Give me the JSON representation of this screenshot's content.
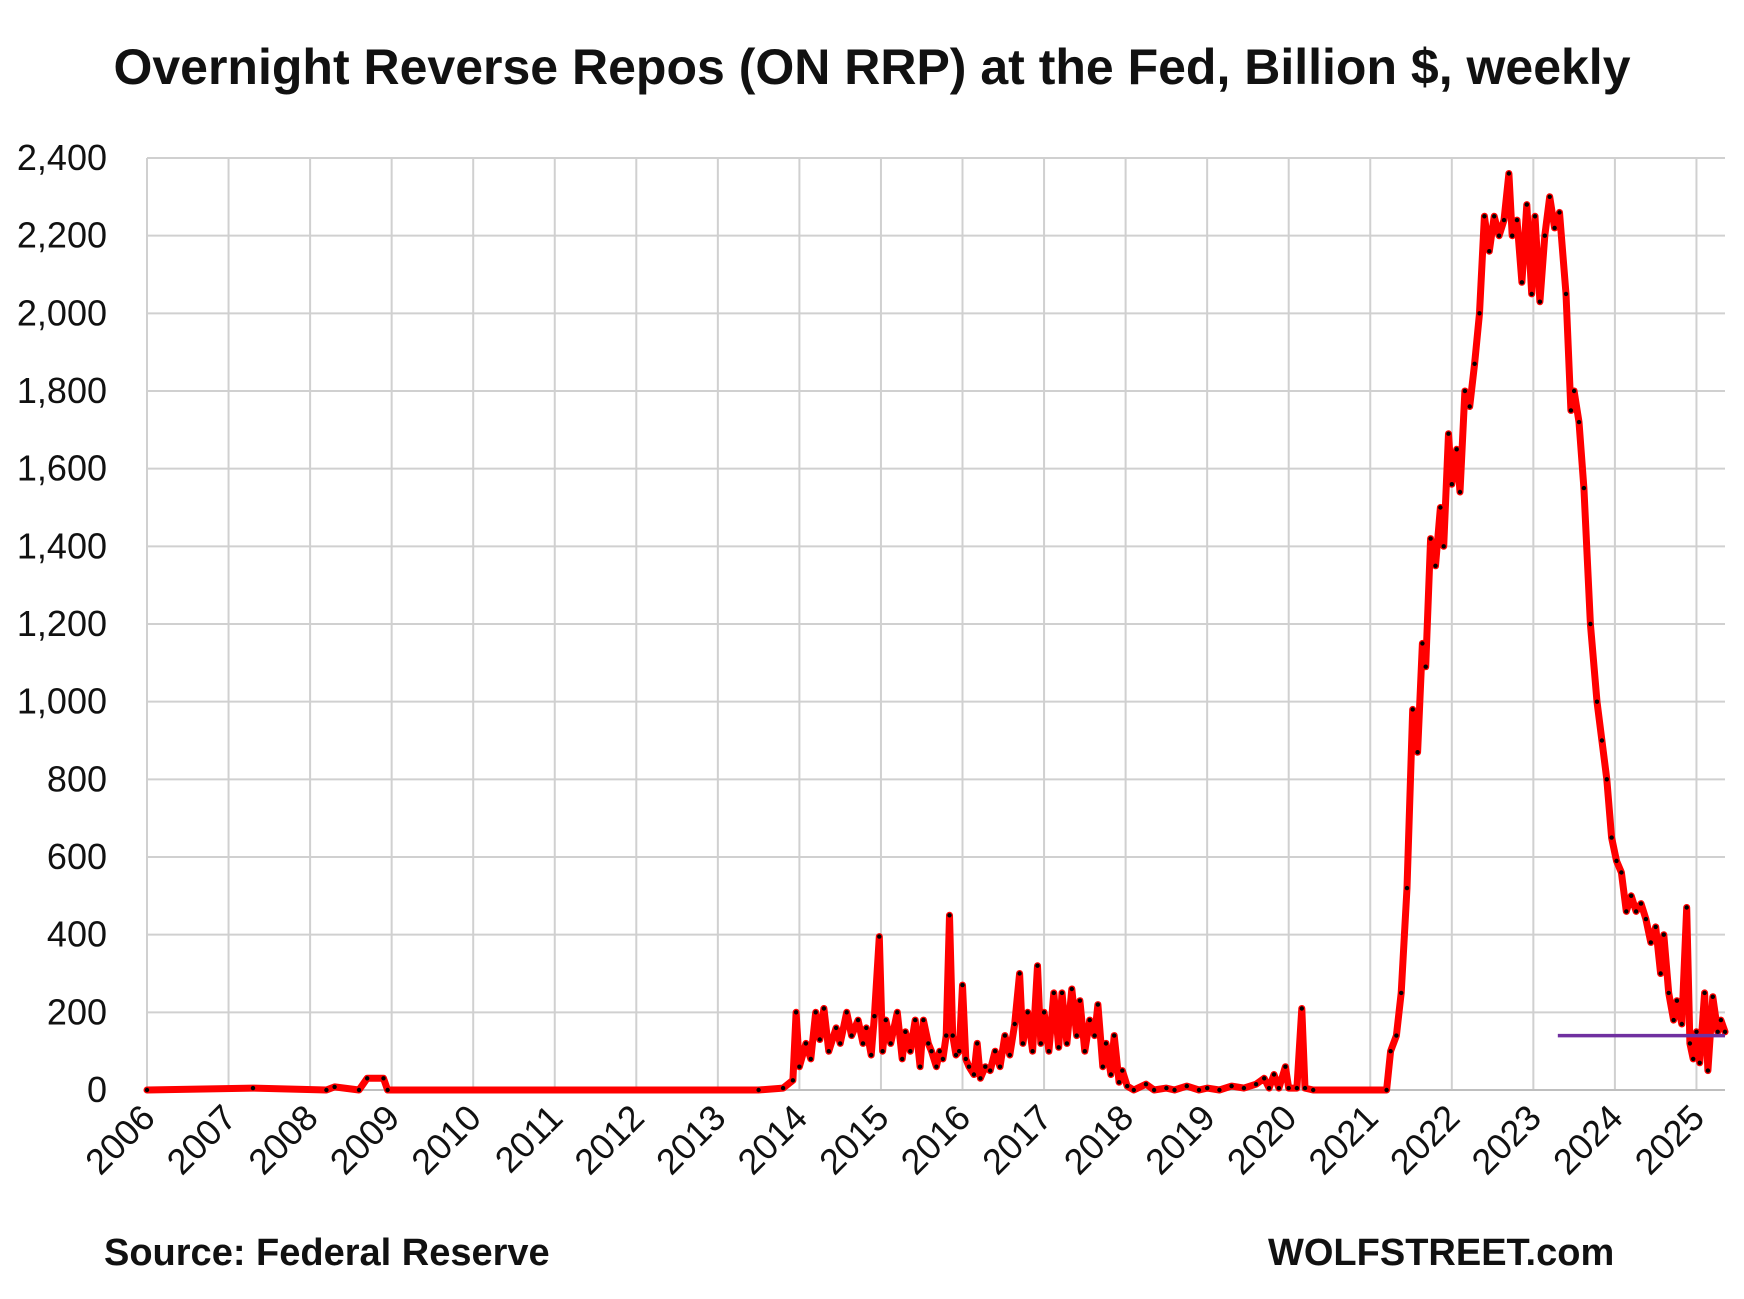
{
  "chart_data": {
    "type": "line",
    "title": "Overnight Reverse Repos (ON RRP) at the Fed, Billion $, weekly",
    "xlabel": "",
    "ylabel": "",
    "x_tick_labels": [
      "2006",
      "2007",
      "2008",
      "2009",
      "2010",
      "2011",
      "2012",
      "2013",
      "2014",
      "2015",
      "2016",
      "2017",
      "2018",
      "2019",
      "2020",
      "2021",
      "2022",
      "2023",
      "2024",
      "2025"
    ],
    "y_tick_labels": [
      "0",
      "200",
      "400",
      "600",
      "800",
      "1,000",
      "1,200",
      "1,400",
      "1,600",
      "1,800",
      "2,000",
      "2,200",
      "2,400"
    ],
    "ylim": [
      0,
      2400
    ],
    "xlim": [
      2006.0,
      2025.35
    ],
    "grid": true,
    "legend": "none",
    "series": [
      {
        "color": "#ff0000",
        "marker_color": "#000000",
        "points": [
          [
            2006.0,
            0
          ],
          [
            2007.3,
            5
          ],
          [
            2008.2,
            0
          ],
          [
            2008.3,
            8
          ],
          [
            2008.6,
            0
          ],
          [
            2008.7,
            30
          ],
          [
            2008.9,
            30
          ],
          [
            2008.95,
            0
          ],
          [
            2013.5,
            0
          ],
          [
            2013.8,
            5
          ],
          [
            2013.92,
            25
          ],
          [
            2013.96,
            200
          ],
          [
            2014.0,
            60
          ],
          [
            2014.08,
            120
          ],
          [
            2014.14,
            80
          ],
          [
            2014.2,
            200
          ],
          [
            2014.25,
            130
          ],
          [
            2014.3,
            210
          ],
          [
            2014.36,
            100
          ],
          [
            2014.45,
            160
          ],
          [
            2014.5,
            120
          ],
          [
            2014.58,
            200
          ],
          [
            2014.64,
            140
          ],
          [
            2014.72,
            180
          ],
          [
            2014.78,
            120
          ],
          [
            2014.82,
            160
          ],
          [
            2014.88,
            90
          ],
          [
            2014.92,
            190
          ],
          [
            2014.98,
            395
          ],
          [
            2015.02,
            100
          ],
          [
            2015.06,
            180
          ],
          [
            2015.12,
            120
          ],
          [
            2015.2,
            200
          ],
          [
            2015.26,
            80
          ],
          [
            2015.3,
            150
          ],
          [
            2015.36,
            100
          ],
          [
            2015.42,
            180
          ],
          [
            2015.48,
            60
          ],
          [
            2015.52,
            180
          ],
          [
            2015.58,
            120
          ],
          [
            2015.62,
            100
          ],
          [
            2015.68,
            60
          ],
          [
            2015.72,
            100
          ],
          [
            2015.76,
            80
          ],
          [
            2015.8,
            140
          ],
          [
            2015.84,
            450
          ],
          [
            2015.88,
            140
          ],
          [
            2015.92,
            90
          ],
          [
            2015.96,
            100
          ],
          [
            2016.0,
            270
          ],
          [
            2016.04,
            80
          ],
          [
            2016.08,
            60
          ],
          [
            2016.14,
            40
          ],
          [
            2016.18,
            120
          ],
          [
            2016.22,
            30
          ],
          [
            2016.28,
            60
          ],
          [
            2016.34,
            50
          ],
          [
            2016.4,
            100
          ],
          [
            2016.46,
            60
          ],
          [
            2016.52,
            140
          ],
          [
            2016.58,
            90
          ],
          [
            2016.64,
            170
          ],
          [
            2016.7,
            300
          ],
          [
            2016.74,
            120
          ],
          [
            2016.8,
            200
          ],
          [
            2016.86,
            100
          ],
          [
            2016.92,
            320
          ],
          [
            2016.96,
            120
          ],
          [
            2017.0,
            200
          ],
          [
            2017.06,
            100
          ],
          [
            2017.12,
            250
          ],
          [
            2017.18,
            110
          ],
          [
            2017.22,
            250
          ],
          [
            2017.28,
            120
          ],
          [
            2017.34,
            260
          ],
          [
            2017.4,
            140
          ],
          [
            2017.44,
            230
          ],
          [
            2017.5,
            100
          ],
          [
            2017.56,
            180
          ],
          [
            2017.62,
            140
          ],
          [
            2017.66,
            220
          ],
          [
            2017.72,
            60
          ],
          [
            2017.76,
            120
          ],
          [
            2017.82,
            40
          ],
          [
            2017.86,
            140
          ],
          [
            2017.92,
            20
          ],
          [
            2017.96,
            50
          ],
          [
            2018.02,
            10
          ],
          [
            2018.1,
            0
          ],
          [
            2018.25,
            15
          ],
          [
            2018.35,
            0
          ],
          [
            2018.5,
            5
          ],
          [
            2018.6,
            0
          ],
          [
            2018.75,
            10
          ],
          [
            2018.9,
            0
          ],
          [
            2019.0,
            5
          ],
          [
            2019.15,
            0
          ],
          [
            2019.3,
            10
          ],
          [
            2019.45,
            5
          ],
          [
            2019.6,
            15
          ],
          [
            2019.7,
            30
          ],
          [
            2019.76,
            5
          ],
          [
            2019.82,
            40
          ],
          [
            2019.88,
            5
          ],
          [
            2019.96,
            60
          ],
          [
            2020.0,
            5
          ],
          [
            2020.1,
            5
          ],
          [
            2020.16,
            210
          ],
          [
            2020.2,
            5
          ],
          [
            2020.3,
            0
          ],
          [
            2021.2,
            0
          ],
          [
            2021.25,
            100
          ],
          [
            2021.32,
            140
          ],
          [
            2021.38,
            250
          ],
          [
            2021.45,
            520
          ],
          [
            2021.52,
            980
          ],
          [
            2021.58,
            870
          ],
          [
            2021.64,
            1150
          ],
          [
            2021.68,
            1090
          ],
          [
            2021.74,
            1420
          ],
          [
            2021.8,
            1350
          ],
          [
            2021.86,
            1500
          ],
          [
            2021.9,
            1400
          ],
          [
            2021.96,
            1690
          ],
          [
            2022.0,
            1560
          ],
          [
            2022.06,
            1650
          ],
          [
            2022.1,
            1540
          ],
          [
            2022.16,
            1800
          ],
          [
            2022.22,
            1760
          ],
          [
            2022.28,
            1870
          ],
          [
            2022.34,
            2000
          ],
          [
            2022.4,
            2250
          ],
          [
            2022.46,
            2160
          ],
          [
            2022.52,
            2250
          ],
          [
            2022.58,
            2200
          ],
          [
            2022.64,
            2240
          ],
          [
            2022.7,
            2360
          ],
          [
            2022.74,
            2200
          ],
          [
            2022.8,
            2240
          ],
          [
            2022.86,
            2080
          ],
          [
            2022.92,
            2280
          ],
          [
            2022.98,
            2050
          ],
          [
            2023.02,
            2250
          ],
          [
            2023.08,
            2030
          ],
          [
            2023.14,
            2200
          ],
          [
            2023.2,
            2300
          ],
          [
            2023.26,
            2220
          ],
          [
            2023.32,
            2260
          ],
          [
            2023.4,
            2050
          ],
          [
            2023.46,
            1750
          ],
          [
            2023.5,
            1800
          ],
          [
            2023.56,
            1720
          ],
          [
            2023.62,
            1550
          ],
          [
            2023.7,
            1200
          ],
          [
            2023.78,
            1000
          ],
          [
            2023.84,
            900
          ],
          [
            2023.9,
            800
          ],
          [
            2023.96,
            650
          ],
          [
            2024.02,
            590
          ],
          [
            2024.08,
            560
          ],
          [
            2024.14,
            460
          ],
          [
            2024.2,
            500
          ],
          [
            2024.26,
            460
          ],
          [
            2024.32,
            480
          ],
          [
            2024.38,
            440
          ],
          [
            2024.44,
            380
          ],
          [
            2024.5,
            420
          ],
          [
            2024.56,
            300
          ],
          [
            2024.6,
            400
          ],
          [
            2024.66,
            250
          ],
          [
            2024.72,
            180
          ],
          [
            2024.76,
            230
          ],
          [
            2024.82,
            170
          ],
          [
            2024.88,
            470
          ],
          [
            2024.92,
            120
          ],
          [
            2024.96,
            80
          ],
          [
            2025.0,
            150
          ],
          [
            2025.04,
            70
          ],
          [
            2025.1,
            250
          ],
          [
            2025.14,
            50
          ],
          [
            2025.2,
            240
          ],
          [
            2025.26,
            150
          ],
          [
            2025.3,
            180
          ],
          [
            2025.35,
            150
          ]
        ]
      }
    ],
    "reference_line": {
      "color": "#7030a0",
      "y": 140,
      "x_start": 2023.3,
      "x_end": 2025.35
    }
  },
  "footer": {
    "source": "Source: Federal Reserve",
    "brand": "WOLFSTREET.com"
  }
}
